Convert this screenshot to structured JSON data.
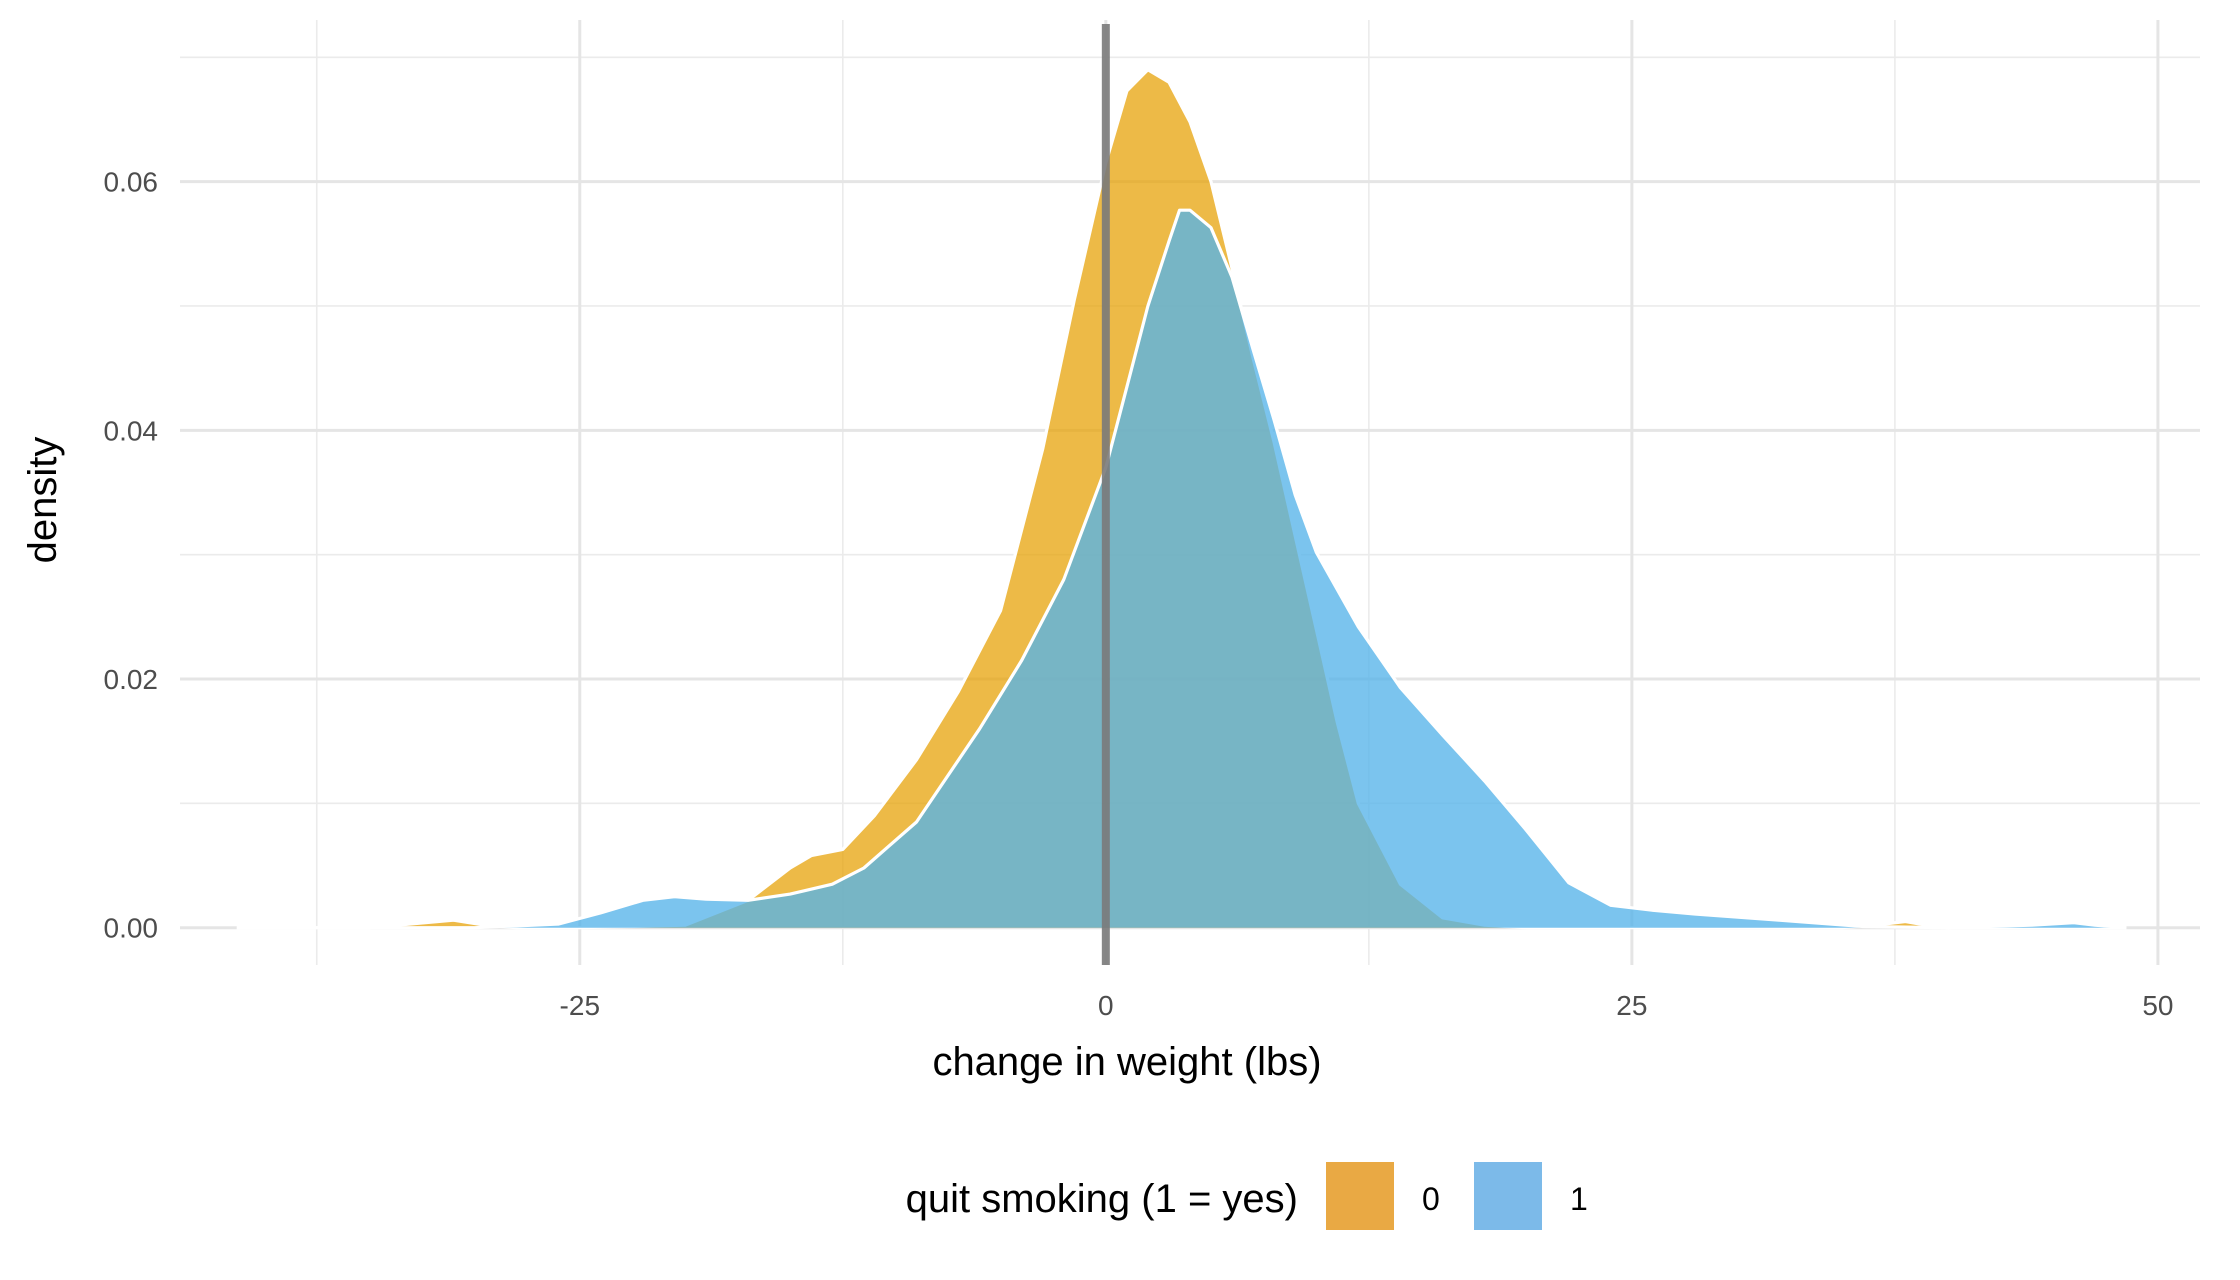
{
  "chart_data": {
    "type": "area",
    "title": "",
    "xlabel": "change in weight (lbs)",
    "ylabel": "density",
    "xlim": [
      -44,
      52
    ],
    "ylim": [
      -0.003,
      0.073
    ],
    "x_ticks": [
      -25,
      0,
      25,
      50
    ],
    "x_tick_labels": [
      "-25",
      "0",
      "25",
      "50"
    ],
    "y_ticks": [
      0.0,
      0.02,
      0.04,
      0.06
    ],
    "y_tick_labels": [
      "0.00",
      "0.02",
      "0.04",
      "0.06"
    ],
    "grid": true,
    "reference_line_x": 0,
    "legend": {
      "title": "quit smoking (1 = yes)",
      "position": "bottom",
      "entries": [
        {
          "label": "0",
          "color": "#E69F00"
        },
        {
          "label": "1",
          "color": "#56B4E9"
        }
      ]
    },
    "series": [
      {
        "name": "0",
        "color": "#E69F00",
        "x": [
          -41.3,
          -35,
          -31,
          -29.5,
          -28,
          -25,
          -20,
          -17,
          -15,
          -14,
          -12.5,
          -11,
          -9,
          -7,
          -5,
          -3,
          -1.5,
          0,
          1,
          2,
          3,
          4,
          5,
          6,
          7,
          8,
          9,
          10,
          11,
          12,
          14,
          16,
          18,
          20,
          25,
          30,
          35,
          37,
          38,
          39,
          40,
          48.5
        ],
        "y": [
          0.0,
          0.0,
          0.0006,
          0.0002,
          0.0,
          0.0,
          0.0002,
          0.0022,
          0.0048,
          0.0058,
          0.0063,
          0.009,
          0.0135,
          0.019,
          0.0255,
          0.0385,
          0.0505,
          0.0615,
          0.0673,
          0.069,
          0.068,
          0.0648,
          0.06,
          0.053,
          0.0458,
          0.039,
          0.0315,
          0.024,
          0.0165,
          0.01,
          0.0035,
          0.0008,
          0.0002,
          0.0,
          0.0,
          0.0,
          0.0,
          0.0003,
          0.0005,
          0.0002,
          0.0,
          0.0
        ]
      },
      {
        "name": "1",
        "color": "#56B4E9",
        "x": [
          -41.3,
          -30,
          -26,
          -24,
          -22,
          -20.5,
          -19,
          -17,
          -15,
          -13,
          -11.5,
          -9,
          -6,
          -4,
          -2,
          0,
          1,
          2,
          3,
          3.5,
          4,
          5,
          6,
          7,
          8,
          9,
          10,
          12,
          14,
          16,
          18,
          20,
          22,
          24,
          26,
          28,
          32,
          36,
          40,
          44,
          46,
          47,
          48.5
        ],
        "y": [
          0.0,
          0.0,
          0.0003,
          0.0012,
          0.0022,
          0.0025,
          0.0023,
          0.0022,
          0.0027,
          0.0035,
          0.0048,
          0.0085,
          0.016,
          0.0215,
          0.028,
          0.037,
          0.0435,
          0.05,
          0.0552,
          0.0577,
          0.0577,
          0.0563,
          0.0523,
          0.0465,
          0.0408,
          0.0348,
          0.0302,
          0.0242,
          0.0193,
          0.0155,
          0.0118,
          0.0078,
          0.0036,
          0.0018,
          0.0014,
          0.0011,
          0.0006,
          0.0001,
          0.0,
          0.0002,
          0.0004,
          0.0002,
          0.0
        ]
      }
    ]
  }
}
